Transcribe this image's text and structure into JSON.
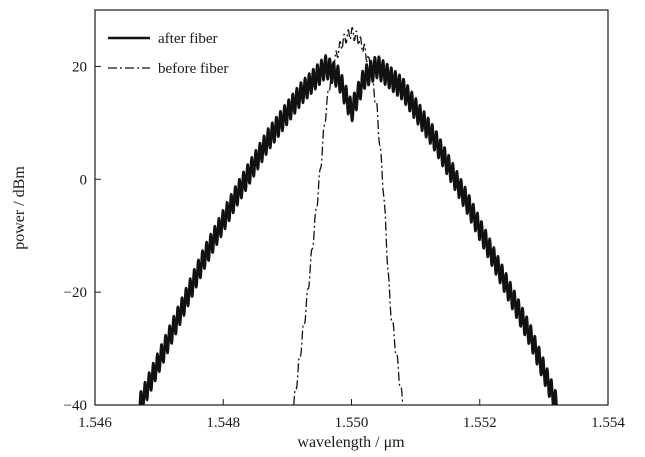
{
  "chart_data": {
    "type": "line",
    "xlabel": "wavelength / μm",
    "ylabel": "power / dBm",
    "xlim": [
      1.546,
      1.554
    ],
    "ylim": [
      -40,
      30
    ],
    "x_ticks": [
      1.546,
      1.548,
      1.55,
      1.552,
      1.554
    ],
    "x_tick_labels": [
      "1.546",
      "1.548",
      "1.550",
      "1.552",
      "1.554"
    ],
    "y_ticks": [
      -40,
      -20,
      0,
      20
    ],
    "y_tick_labels": [
      "−40",
      "−20",
      "0",
      "20"
    ],
    "grid": false,
    "legend_position": "top-left",
    "series": [
      {
        "name": "after fiber",
        "style": "solid",
        "color": "#111111",
        "ripple_dB": 2,
        "x": [
          1.5467,
          1.5472,
          1.5477,
          1.5482,
          1.5487,
          1.5492,
          1.5496,
          1.5498,
          1.55,
          1.5502,
          1.5504,
          1.5508,
          1.5513,
          1.5518,
          1.5523,
          1.5528,
          1.5532
        ],
        "y": [
          -40,
          -27,
          -14,
          -3,
          7,
          15,
          20,
          18,
          12,
          18,
          20,
          16,
          7,
          -4,
          -16,
          -28,
          -40
        ]
      },
      {
        "name": "before fiber",
        "style": "dash-dot",
        "color": "#111111",
        "ripple_dB": 1,
        "x": [
          1.5491,
          1.5492,
          1.5493,
          1.5495,
          1.5496,
          1.5497,
          1.5498,
          1.5499,
          1.55,
          1.5501,
          1.5502,
          1.5503,
          1.5504,
          1.5505,
          1.5506,
          1.5507,
          1.5508
        ],
        "y": [
          -40,
          -31,
          -22,
          0,
          12,
          20,
          23,
          25,
          26,
          25,
          23,
          20,
          12,
          -2,
          -22,
          -31,
          -40
        ]
      }
    ]
  }
}
